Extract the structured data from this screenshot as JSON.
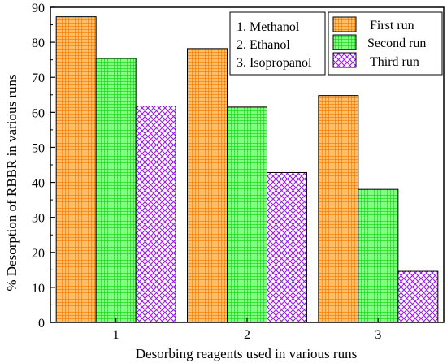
{
  "chart_data": {
    "type": "bar",
    "xlabel": "Desorbing reagents used in various runs",
    "ylabel": "% Desorption of RBBR  in various runs",
    "categories": [
      "1",
      "2",
      "3"
    ],
    "ylim": [
      0,
      90
    ],
    "yticks": [
      0,
      10,
      20,
      30,
      40,
      50,
      60,
      70,
      80,
      90
    ],
    "series": [
      {
        "name": "First run",
        "values": [
          87.3,
          78.2,
          64.8
        ],
        "color": "#ff9922",
        "pattern": "grid"
      },
      {
        "name": "Second run",
        "values": [
          75.4,
          61.5,
          38.0
        ],
        "color": "#33ee33",
        "pattern": "grid"
      },
      {
        "name": "Third run",
        "values": [
          61.8,
          42.8,
          14.6
        ],
        "color": "#aa22ff",
        "pattern": "crosshatch"
      }
    ],
    "reagent_legend": [
      "1. Methanol",
      "2. Ethanol",
      "3. Isopropanol"
    ],
    "legend_position": "top-right",
    "grid": false
  }
}
